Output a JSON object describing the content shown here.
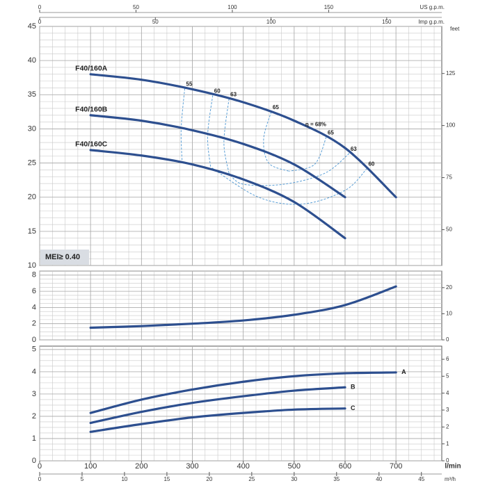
{
  "chart_data": [
    {
      "type": "line",
      "xlim": [
        0,
        790
      ],
      "ylim": [
        10,
        45
      ],
      "yticks": [
        10,
        15,
        20,
        25,
        30,
        35,
        40,
        45
      ],
      "y2label": "feet",
      "y2lim": [
        32.8,
        147.6
      ],
      "y2ticks": [
        50,
        75,
        100,
        125
      ],
      "grid": true,
      "top_axes": [
        {
          "label": "US g.p.m.",
          "xlim": [
            0,
            208.7
          ],
          "xticks": [
            0,
            50,
            100,
            150
          ]
        },
        {
          "label": "Imp g.p.m.",
          "xlim": [
            0,
            173.8
          ],
          "xticks": [
            0,
            50,
            100,
            150
          ]
        }
      ],
      "badge": "MEI≥ 0.40",
      "x": [
        100,
        200,
        300,
        400,
        500,
        600,
        700
      ],
      "series": [
        {
          "name": "F40/160A",
          "color": "#2d4f8f",
          "values": [
            38,
            37.2,
            35.8,
            33.9,
            31.2,
            27.2,
            20
          ]
        },
        {
          "name": "F40/160B",
          "color": "#2d4f8f",
          "values": [
            32,
            31.2,
            29.8,
            27.8,
            24.8,
            20,
            null
          ]
        },
        {
          "name": "F40/160C",
          "color": "#2d4f8f",
          "values": [
            26.9,
            26.1,
            24.8,
            22.6,
            19.3,
            14,
            null
          ]
        }
      ],
      "efficiency_color": "#5b9fd6",
      "efficiency_curves": [
        {
          "name": "55",
          "x": [
            285,
            278,
            280
          ],
          "values": [
            35.9,
            30,
            25
          ]
        },
        {
          "name": "60",
          "x": [
            340,
            330,
            336
          ],
          "values": [
            34.9,
            29,
            24.3
          ]
        },
        {
          "name": "63",
          "x": [
            372,
            362,
            372
          ],
          "values": [
            34.4,
            28,
            23.5
          ]
        },
        {
          "name": "65",
          "x": [
            455,
            440,
            450,
            490
          ],
          "values": [
            32.5,
            28.5,
            25,
            23.8
          ]
        },
        {
          "name": "65",
          "x": [
            563,
            540,
            490
          ],
          "values": [
            28.8,
            24.8,
            23.8
          ]
        },
        {
          "name": "63",
          "x": [
            608,
            560,
            480,
            400,
            372
          ],
          "values": [
            26.4,
            23.5,
            21.9,
            21.9,
            23.5
          ]
        },
        {
          "name": "60",
          "x": [
            643,
            600,
            516,
            430,
            338
          ],
          "values": [
            24.2,
            21,
            19,
            20,
            24.3
          ]
        }
      ],
      "annotations": [
        {
          "text": "η = 68%",
          "x": 522,
          "y": 30.6
        }
      ]
    },
    {
      "type": "line",
      "xlim": [
        0,
        790
      ],
      "ylim": [
        0,
        8.5
      ],
      "yticks": [
        0,
        2,
        4,
        6,
        8
      ],
      "y2lim": [
        0,
        26.35
      ],
      "y2ticks": [
        0,
        10,
        20
      ],
      "grid": true,
      "x": [
        100,
        200,
        300,
        400,
        500,
        600,
        700
      ],
      "series": [
        {
          "color": "#2d4f8f",
          "values": [
            1.5,
            1.7,
            2.0,
            2.4,
            3.1,
            4.3,
            6.6
          ]
        }
      ]
    },
    {
      "type": "line",
      "xlim": [
        0,
        790
      ],
      "xticks": [
        0,
        100,
        200,
        300,
        400,
        500,
        600,
        700
      ],
      "xlabel": "l/min",
      "ylim": [
        0,
        5.15
      ],
      "yticks": [
        0,
        1,
        2,
        3,
        4,
        5
      ],
      "y2lim": [
        0,
        6.78
      ],
      "y2ticks": [
        0,
        1,
        2,
        3,
        4,
        5,
        6
      ],
      "grid": true,
      "bottom_axes": [
        {
          "label": "m³/h",
          "xlim": [
            0,
            47.4
          ],
          "xticks": [
            0,
            5,
            10,
            15,
            20,
            25,
            30,
            35,
            40,
            45
          ]
        }
      ],
      "x": [
        100,
        200,
        300,
        400,
        500,
        600,
        700
      ],
      "series": [
        {
          "name": "A",
          "color": "#2d4f8f",
          "values": [
            2.15,
            2.75,
            3.2,
            3.55,
            3.8,
            3.93,
            3.97
          ]
        },
        {
          "name": "B",
          "color": "#2d4f8f",
          "values": [
            1.7,
            2.2,
            2.6,
            2.9,
            3.15,
            3.3,
            null
          ]
        },
        {
          "name": "C",
          "color": "#2d4f8f",
          "values": [
            1.3,
            1.65,
            1.95,
            2.15,
            2.3,
            2.35,
            null
          ]
        }
      ]
    }
  ]
}
